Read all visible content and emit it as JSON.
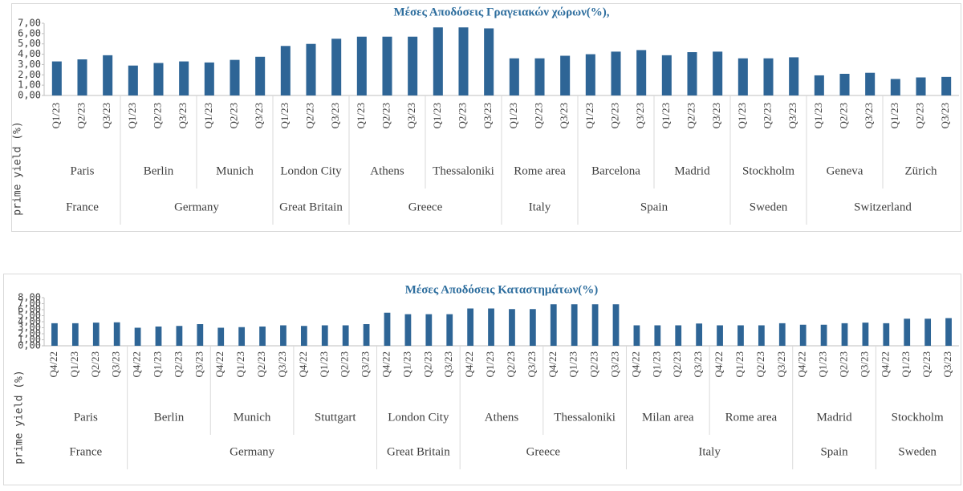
{
  "chart_data": [
    {
      "type": "bar",
      "title": "Μέσες Αποδόσεις Γραγειακών χώρων(%),",
      "y_label": "prime yield (%)",
      "color": "#2e6596",
      "ylim": [
        0,
        7
      ],
      "yticks": [
        {
          "value": 0,
          "label": "0,00"
        },
        {
          "value": 1,
          "label": "1,00"
        },
        {
          "value": 2,
          "label": "2,00"
        },
        {
          "value": 3,
          "label": "3,00"
        },
        {
          "value": 4,
          "label": "4,00"
        },
        {
          "value": 5,
          "label": "5,00"
        },
        {
          "value": 6,
          "label": "6,00"
        },
        {
          "value": 7,
          "label": "7,00"
        }
      ],
      "countries": [
        {
          "name": "France",
          "cities": [
            {
              "name": "Paris",
              "categories": [
                "Q1/23",
                "Q2/23",
                "Q3/23"
              ],
              "values": [
                3.3,
                3.5,
                3.9
              ]
            }
          ]
        },
        {
          "name": "Germany",
          "cities": [
            {
              "name": "Berlin",
              "categories": [
                "Q1/23",
                "Q2/23",
                "Q3/23"
              ],
              "values": [
                2.9,
                3.15,
                3.3
              ]
            },
            {
              "name": "Munich",
              "categories": [
                "Q1/23",
                "Q2/23",
                "Q3/23"
              ],
              "values": [
                3.2,
                3.45,
                3.75
              ]
            }
          ]
        },
        {
          "name": "Great Britain",
          "cities": [
            {
              "name": "London City",
              "categories": [
                "Q1/23",
                "Q2/23",
                "Q3/23"
              ],
              "values": [
                4.8,
                5.0,
                5.5
              ]
            }
          ]
        },
        {
          "name": "Greece",
          "cities": [
            {
              "name": "Athens",
              "categories": [
                "Q1/23",
                "Q2/23",
                "Q3/23"
              ],
              "values": [
                5.7,
                5.7,
                5.7
              ]
            },
            {
              "name": "Thessaloniki",
              "categories": [
                "Q1/23",
                "Q2/23",
                "Q3/23"
              ],
              "values": [
                6.6,
                6.6,
                6.5
              ]
            }
          ]
        },
        {
          "name": "Italy",
          "cities": [
            {
              "name": "Rome area",
              "categories": [
                "Q1/23",
                "Q2/23",
                "Q3/23"
              ],
              "values": [
                3.6,
                3.6,
                3.85
              ]
            }
          ]
        },
        {
          "name": "Spain",
          "cities": [
            {
              "name": "Barcelona",
              "categories": [
                "Q1/23",
                "Q2/23",
                "Q3/23"
              ],
              "values": [
                4.0,
                4.25,
                4.4
              ]
            },
            {
              "name": "Madrid",
              "categories": [
                "Q1/23",
                "Q2/23",
                "Q3/23"
              ],
              "values": [
                3.9,
                4.2,
                4.25
              ]
            }
          ]
        },
        {
          "name": "Sweden",
          "cities": [
            {
              "name": "Stockholm",
              "categories": [
                "Q1/23",
                "Q2/23",
                "Q3/23"
              ],
              "values": [
                3.6,
                3.6,
                3.7
              ]
            }
          ]
        },
        {
          "name": "Switzerland",
          "cities": [
            {
              "name": "Geneva",
              "categories": [
                "Q1/23",
                "Q2/23",
                "Q3/23"
              ],
              "values": [
                1.95,
                2.1,
                2.2
              ]
            },
            {
              "name": "Zürich",
              "categories": [
                "Q1/23",
                "Q2/23",
                "Q3/23"
              ],
              "values": [
                1.6,
                1.75,
                1.8
              ]
            }
          ]
        }
      ]
    },
    {
      "type": "bar",
      "title": "Μέσες Αποδόσεις Καταστημάτων(%)",
      "y_label": "prime yield (%)",
      "color": "#2e6596",
      "ylim": [
        0,
        8
      ],
      "yticks": [
        {
          "value": 0,
          "label": "0,00"
        },
        {
          "value": 1,
          "label": "1,00"
        },
        {
          "value": 2,
          "label": "2,00"
        },
        {
          "value": 3,
          "label": "3,00"
        },
        {
          "value": 4,
          "label": "4,00"
        },
        {
          "value": 5,
          "label": "5,00"
        },
        {
          "value": 6,
          "label": "6,00"
        },
        {
          "value": 7,
          "label": "7,00"
        },
        {
          "value": 8,
          "label": "8,00"
        }
      ],
      "countries": [
        {
          "name": "France",
          "cities": [
            {
              "name": "Paris",
              "categories": [
                "Q4/22",
                "Q1/23",
                "Q2/23",
                "Q3/23"
              ],
              "values": [
                3.75,
                3.75,
                3.85,
                3.9
              ]
            }
          ]
        },
        {
          "name": "Germany",
          "cities": [
            {
              "name": "Berlin",
              "categories": [
                "Q4/22",
                "Q1/23",
                "Q2/23",
                "Q3/23"
              ],
              "values": [
                3.0,
                3.2,
                3.3,
                3.6
              ]
            },
            {
              "name": "Munich",
              "categories": [
                "Q4/22",
                "Q1/23",
                "Q2/23",
                "Q3/23"
              ],
              "values": [
                3.0,
                3.1,
                3.2,
                3.4
              ]
            },
            {
              "name": "Stuttgart",
              "categories": [
                "Q4/22",
                "Q1/23",
                "Q2/23",
                "Q3/23"
              ],
              "values": [
                3.3,
                3.4,
                3.4,
                3.6
              ]
            }
          ]
        },
        {
          "name": "Great Britain",
          "cities": [
            {
              "name": "London City",
              "categories": [
                "Q4/22",
                "Q1/23",
                "Q2/23",
                "Q3/23"
              ],
              "values": [
                5.5,
                5.25,
                5.25,
                5.25
              ]
            }
          ]
        },
        {
          "name": "Greece",
          "cities": [
            {
              "name": "Athens",
              "categories": [
                "Q4/22",
                "Q1/23",
                "Q2/23",
                "Q3/23"
              ],
              "values": [
                6.2,
                6.2,
                6.1,
                6.1
              ]
            },
            {
              "name": "Thessaloniki",
              "categories": [
                "Q4/22",
                "Q1/23",
                "Q2/23",
                "Q3/23"
              ],
              "values": [
                6.9,
                6.9,
                6.9,
                6.9
              ]
            }
          ]
        },
        {
          "name": "Italy",
          "cities": [
            {
              "name": "Milan area",
              "categories": [
                "Q4/22",
                "Q1/23",
                "Q2/23",
                "Q3/23"
              ],
              "values": [
                3.4,
                3.4,
                3.4,
                3.7
              ]
            },
            {
              "name": "Rome area",
              "categories": [
                "Q4/22",
                "Q1/23",
                "Q2/23",
                "Q3/23"
              ],
              "values": [
                3.4,
                3.4,
                3.4,
                3.75
              ]
            }
          ]
        },
        {
          "name": "Spain",
          "cities": [
            {
              "name": "Madrid",
              "categories": [
                "Q4/22",
                "Q1/23",
                "Q2/23",
                "Q3/23"
              ],
              "values": [
                3.5,
                3.5,
                3.75,
                3.85
              ]
            }
          ]
        },
        {
          "name": "Sweden",
          "cities": [
            {
              "name": "Stockholm",
              "categories": [
                "Q4/22",
                "Q1/23",
                "Q2/23",
                "Q3/23"
              ],
              "values": [
                3.75,
                4.5,
                4.5,
                4.6
              ]
            }
          ]
        }
      ]
    }
  ]
}
